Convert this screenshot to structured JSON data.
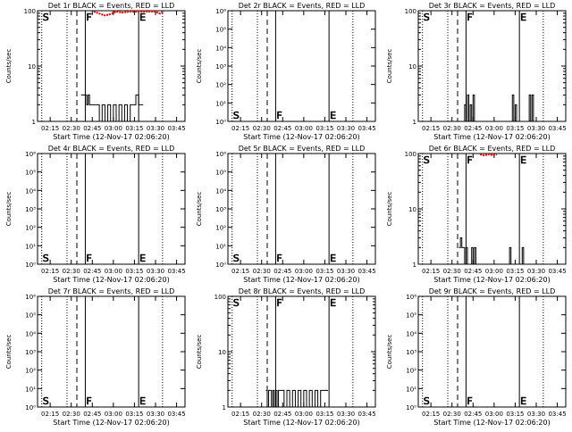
{
  "xlabel": "Start Time (12-Nov-17 02:06:20)",
  "ylabel": "Counts/sec",
  "x_tick_labels": [
    "02:15",
    "02:30",
    "02:45",
    "03:00",
    "03:15",
    "03:30",
    "03:45"
  ],
  "colors": {
    "events": "#000000",
    "lld": "#ff0000"
  },
  "chart_data": [
    {
      "type": "line",
      "title": "Det 1r BLACK = Events, RED = LLD",
      "y_scale": "log",
      "ylim": [
        1,
        100
      ],
      "y_tick_labels": [
        "1",
        "10",
        "100"
      ],
      "markers": [
        "S",
        "F",
        "E"
      ],
      "marker_text_pos": "top",
      "events": [
        [
          "02:37",
          3
        ],
        [
          "02:40",
          3
        ],
        [
          "02:41",
          2
        ],
        [
          "02:42",
          3
        ],
        [
          "02:43",
          2
        ],
        [
          "02:46",
          2
        ],
        [
          "02:48",
          2
        ],
        [
          "02:50",
          1
        ],
        [
          "02:52",
          2
        ],
        [
          "02:54",
          1
        ],
        [
          "02:56",
          2
        ],
        [
          "02:58",
          1
        ],
        [
          "03:00",
          2
        ],
        [
          "03:02",
          1
        ],
        [
          "03:04",
          2
        ],
        [
          "03:06",
          1
        ],
        [
          "03:08",
          2
        ],
        [
          "03:10",
          1
        ],
        [
          "03:12",
          2
        ],
        [
          "03:14",
          2
        ],
        [
          "03:16",
          3
        ],
        [
          "03:18",
          2
        ],
        [
          "03:20",
          2
        ]
      ],
      "lld": [
        [
          "02:46",
          100
        ],
        [
          "02:50",
          92
        ],
        [
          "02:54",
          85
        ],
        [
          "02:58",
          90
        ],
        [
          "03:02",
          100
        ],
        [
          "03:06",
          96
        ],
        [
          "03:12",
          100
        ],
        [
          "03:30",
          100
        ],
        [
          "03:33",
          92
        ],
        [
          "03:36",
          100
        ]
      ]
    },
    {
      "type": "line",
      "title": "Det 2r BLACK = Events, RED = LLD",
      "y_scale": "log",
      "ylim": [
        1,
        1000000
      ],
      "y_tick_labels": [
        "10⁰",
        "10¹",
        "10²",
        "10³",
        "10⁴",
        "10⁵",
        "10⁶"
      ],
      "markers": [
        "S",
        "F",
        "E"
      ],
      "marker_text_pos": "bottom",
      "events": [],
      "lld": []
    },
    {
      "type": "line",
      "title": "Det 3r BLACK = Events, RED = LLD",
      "y_scale": "log",
      "ylim": [
        1,
        100
      ],
      "y_tick_labels": [
        "1",
        "10",
        "100"
      ],
      "markers": [
        "S",
        "F",
        "E"
      ],
      "marker_text_pos": "top",
      "events": [
        [
          "02:38",
          1
        ],
        [
          "02:39",
          2
        ],
        [
          "02:40",
          1
        ],
        [
          "02:41",
          3
        ],
        [
          "02:42",
          1
        ],
        [
          "02:43",
          2
        ],
        [
          "02:44",
          1
        ],
        [
          "02:45",
          3
        ],
        [
          "02:46",
          1
        ],
        [
          "02:47",
          1
        ],
        [
          "03:12",
          1
        ],
        [
          "03:13",
          3
        ],
        [
          "03:14",
          1
        ],
        [
          "03:15",
          2
        ],
        [
          "03:16",
          1
        ],
        [
          "03:24",
          1
        ],
        [
          "03:25",
          3
        ],
        [
          "03:26",
          1
        ],
        [
          "03:27",
          3
        ],
        [
          "03:28",
          1
        ]
      ],
      "lld": []
    },
    {
      "type": "line",
      "title": "Det 4r BLACK = Events, RED = LLD",
      "y_scale": "log",
      "ylim": [
        1,
        1000000
      ],
      "y_tick_labels": [
        "10⁰",
        "10¹",
        "10²",
        "10³",
        "10⁴",
        "10⁵",
        "10⁶"
      ],
      "markers": [
        "S",
        "F",
        "E"
      ],
      "marker_text_pos": "bottom",
      "events": [],
      "lld": []
    },
    {
      "type": "line",
      "title": "Det 5r BLACK = Events, RED = LLD",
      "y_scale": "log",
      "ylim": [
        1,
        1000000
      ],
      "y_tick_labels": [
        "10⁰",
        "10¹",
        "10²",
        "10³",
        "10⁴",
        "10⁵",
        "10⁶"
      ],
      "markers": [
        "S",
        "F",
        "E"
      ],
      "marker_text_pos": "bottom",
      "events": [],
      "lld": []
    },
    {
      "type": "line",
      "title": "Det 6r BLACK = Events, RED = LLD",
      "y_scale": "log",
      "ylim": [
        1,
        100
      ],
      "y_tick_labels": [
        "1",
        "10",
        "100"
      ],
      "markers": [
        "S",
        "F",
        "E"
      ],
      "marker_text_pos": "top",
      "events": [
        [
          "02:35",
          2
        ],
        [
          "02:36",
          3
        ],
        [
          "02:37",
          2
        ],
        [
          "02:38",
          2
        ],
        [
          "02:39",
          1
        ],
        [
          "02:40",
          2
        ],
        [
          "02:41",
          1
        ],
        [
          "02:42",
          1
        ],
        [
          "02:44",
          2
        ],
        [
          "02:45",
          1
        ],
        [
          "02:46",
          2
        ],
        [
          "02:47",
          1
        ],
        [
          "02:48",
          1
        ],
        [
          "02:50",
          1
        ],
        [
          "03:10",
          1
        ],
        [
          "03:11",
          2
        ],
        [
          "03:12",
          1
        ],
        [
          "03:19",
          1
        ],
        [
          "03:20",
          2
        ],
        [
          "03:21",
          1
        ]
      ],
      "lld": [
        [
          "02:50",
          100
        ],
        [
          "02:53",
          96
        ],
        [
          "02:56",
          100
        ],
        [
          "02:59",
          97
        ],
        [
          "03:02",
          100
        ]
      ]
    },
    {
      "type": "line",
      "title": "Det 7r BLACK = Events, RED = LLD",
      "y_scale": "log",
      "ylim": [
        1,
        1000000
      ],
      "y_tick_labels": [
        "10⁰",
        "10¹",
        "10²",
        "10³",
        "10⁴",
        "10⁵",
        "10⁶"
      ],
      "markers": [
        "S",
        "F",
        "E"
      ],
      "marker_text_pos": "bottom",
      "events": [],
      "lld": []
    },
    {
      "type": "line",
      "title": "Det 8r BLACK = Events, RED = LLD",
      "y_scale": "log",
      "ylim": [
        1,
        100
      ],
      "y_tick_labels": [
        "1",
        "10",
        "100"
      ],
      "markers": [
        "S",
        "F",
        "E"
      ],
      "marker_text_pos": "top",
      "events": [
        [
          "02:33",
          2
        ],
        [
          "02:34",
          1
        ],
        [
          "02:35",
          2
        ],
        [
          "02:36",
          2
        ],
        [
          "02:37",
          1
        ],
        [
          "02:38",
          2
        ],
        [
          "02:39",
          1
        ],
        [
          "02:40",
          2
        ],
        [
          "02:41",
          1
        ],
        [
          "02:42",
          2
        ],
        [
          "02:44",
          2
        ],
        [
          "02:46",
          1
        ],
        [
          "02:48",
          2
        ],
        [
          "02:50",
          1
        ],
        [
          "02:52",
          2
        ],
        [
          "02:54",
          1
        ],
        [
          "02:56",
          2
        ],
        [
          "02:58",
          1
        ],
        [
          "03:00",
          2
        ],
        [
          "03:02",
          1
        ],
        [
          "03:04",
          2
        ],
        [
          "03:06",
          1
        ],
        [
          "03:08",
          2
        ],
        [
          "03:10",
          1
        ],
        [
          "03:12",
          2
        ],
        [
          "03:16",
          2
        ]
      ],
      "lld": []
    },
    {
      "type": "line",
      "title": "Det 9r BLACK = Events, RED = LLD",
      "y_scale": "log",
      "ylim": [
        1,
        1000000
      ],
      "y_tick_labels": [
        "10⁰",
        "10¹",
        "10²",
        "10³",
        "10⁴",
        "10⁵",
        "10⁶"
      ],
      "markers": [
        "S",
        "F",
        "E"
      ],
      "marker_text_pos": "bottom",
      "events": [],
      "lld": []
    }
  ]
}
